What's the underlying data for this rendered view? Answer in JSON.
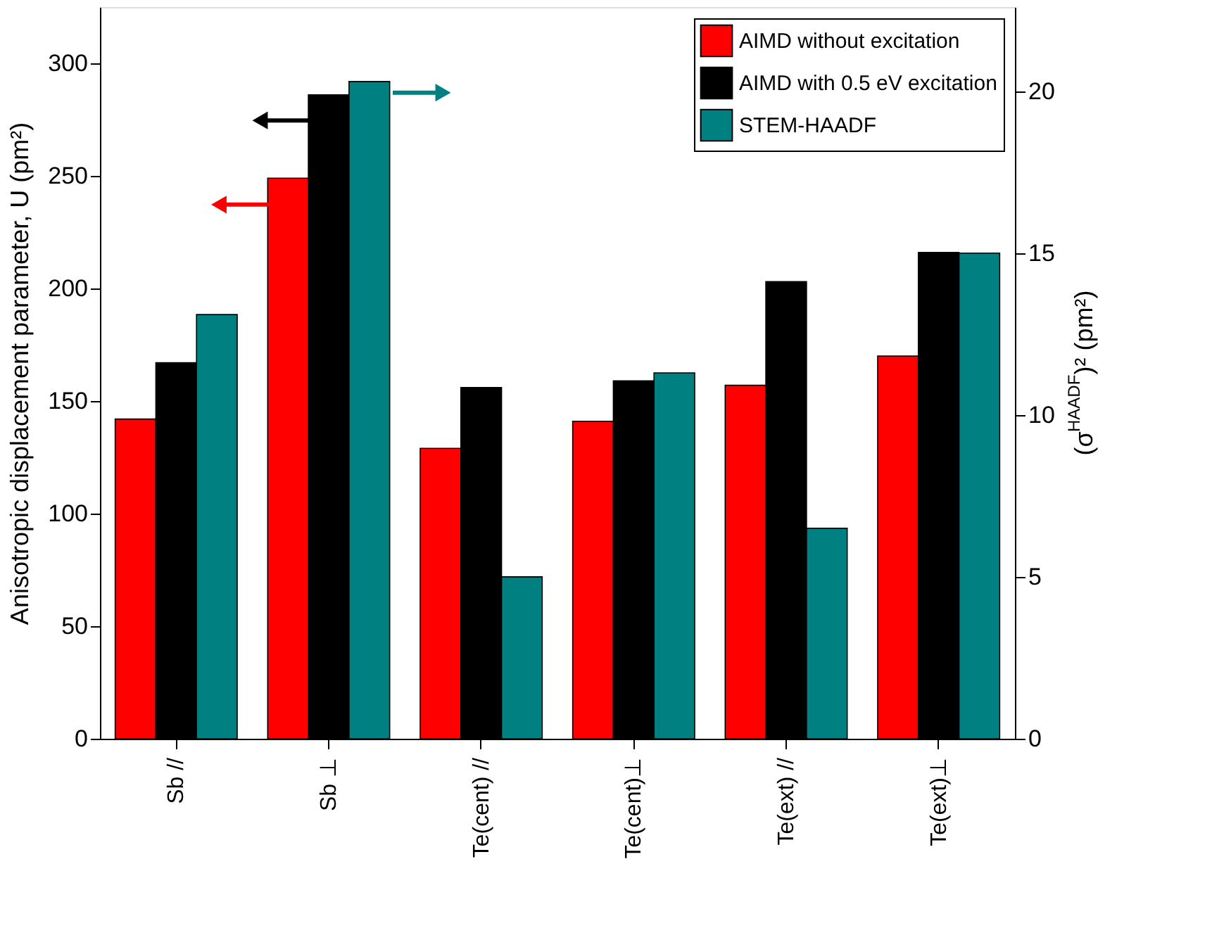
{
  "chart_data": {
    "type": "bar",
    "categories": [
      "Sb //",
      "Sb ⊥",
      "Te(cent) //",
      "Te(cent)⊥",
      "Te(ext) //",
      "Te(ext)⊥"
    ],
    "series": [
      {
        "name": "AIMD without excitation",
        "color": "#ff0000",
        "values": [
          142,
          249,
          129,
          141,
          157,
          170
        ]
      },
      {
        "name": "AIMD with 0.5 eV excitation",
        "color": "#000000",
        "values": [
          167,
          286,
          156,
          159,
          203,
          216
        ]
      },
      {
        "name": "STEM-HAADF",
        "color": "#008080",
        "axis": "y2",
        "values": [
          13.1,
          20.3,
          5.0,
          11.3,
          6.5,
          15.0
        ]
      }
    ],
    "ylabel": "Anisotropic displacement parameter, U (pm²)",
    "y2label": "(σ$^{HAADF}$)² (pm²)",
    "ylim": [
      0,
      325
    ],
    "yticks": [
      0,
      50,
      100,
      150,
      200,
      250,
      300
    ],
    "y2lim": [
      0,
      22.6
    ],
    "y2ticks": [
      0,
      5,
      10,
      15,
      20
    ],
    "grid": false,
    "legend": "top right"
  }
}
